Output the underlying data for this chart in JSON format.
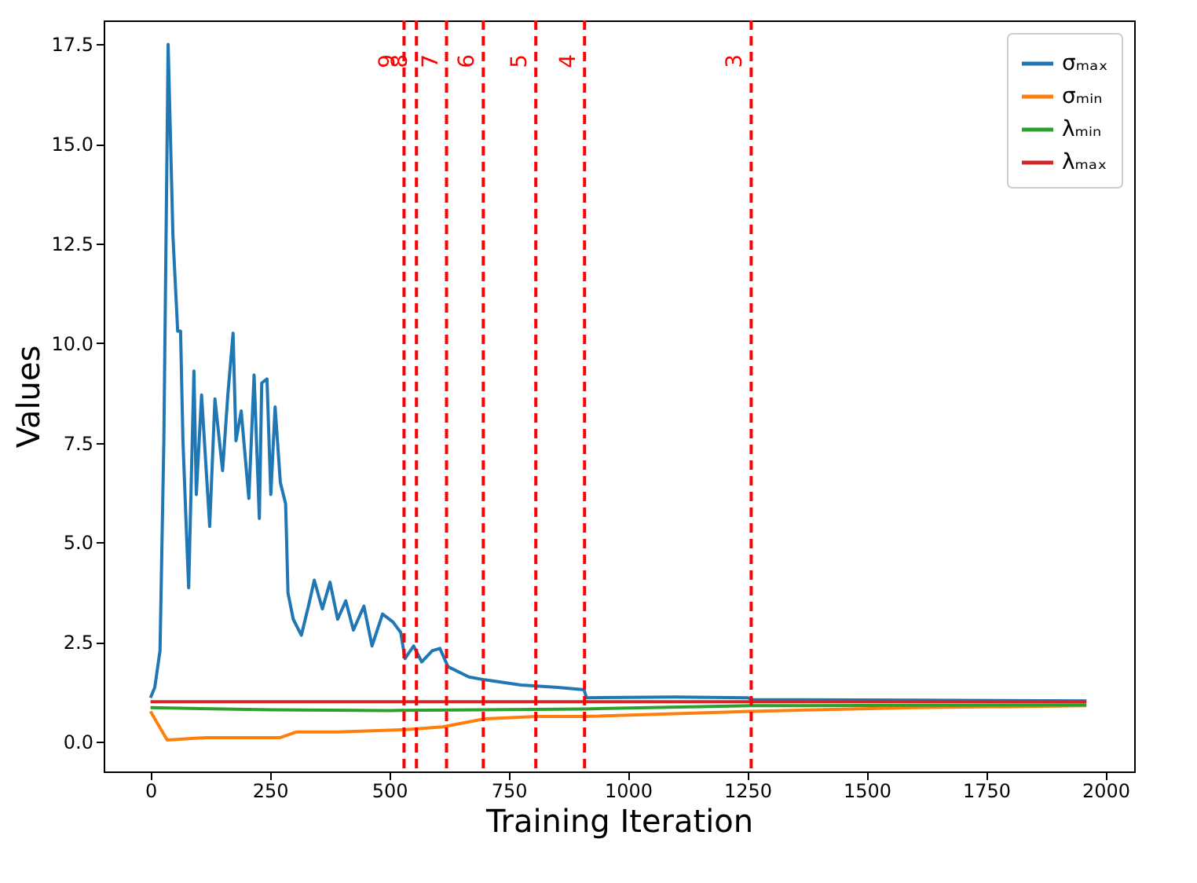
{
  "chart_data": {
    "type": "line",
    "xlabel": "Training Iteration",
    "ylabel": "Values",
    "xlim": [
      -98,
      2060
    ],
    "ylim": [
      -0.75,
      18.1
    ],
    "xticks": [
      0,
      250,
      500,
      750,
      1000,
      1250,
      1500,
      1750,
      2000
    ],
    "yticks": [
      {
        "value": 0,
        "label": "0.0"
      },
      {
        "value": 2.5,
        "label": "2.5"
      },
      {
        "value": 5,
        "label": "5.0"
      },
      {
        "value": 7.5,
        "label": "7.5"
      },
      {
        "value": 10,
        "label": "10.0"
      },
      {
        "value": 12.5,
        "label": "12.5"
      },
      {
        "value": 15,
        "label": "15.0"
      },
      {
        "value": 17.5,
        "label": "17.5"
      }
    ],
    "grid": false,
    "legend": "top right",
    "line_style": "solid",
    "marker": "none",
    "series": [
      {
        "name": "σₘₐₓ",
        "color": "#1f77b4",
        "x": [
          0,
          9,
          20,
          28,
          37,
          47,
          57,
          63,
          68,
          76,
          80,
          91,
          96,
          107,
          124,
          135,
          151,
          162,
          173,
          179,
          190,
          206,
          217,
          228,
          233,
          244,
          252,
          261,
          272,
          283,
          288,
          299,
          316,
          332,
          343,
          360,
          376,
          392,
          409,
          425,
          447,
          464,
          486,
          508,
          524,
          533,
          551,
          568,
          590,
          606,
          623,
          667,
          700,
          776,
          853,
          908,
          913,
          1100,
          1250,
          1262,
          1600,
          1960
        ],
        "values": [
          1.1,
          1.36,
          2.28,
          7.55,
          17.5,
          12.7,
          10.3,
          10.3,
          7.55,
          5.05,
          3.86,
          9.3,
          6.2,
          8.7,
          5.4,
          8.6,
          6.8,
          8.7,
          10.25,
          7.55,
          8.3,
          6.1,
          9.2,
          5.6,
          9.0,
          9.1,
          6.2,
          8.4,
          6.5,
          5.97,
          3.73,
          3.07,
          2.67,
          3.46,
          4.05,
          3.33,
          4.0,
          3.07,
          3.53,
          2.8,
          3.4,
          2.4,
          3.2,
          3.0,
          2.74,
          2.08,
          2.4,
          2.0,
          2.28,
          2.34,
          1.88,
          1.62,
          1.55,
          1.42,
          1.36,
          1.3,
          1.1,
          1.12,
          1.1,
          1.05,
          1.04,
          1.02
        ]
      },
      {
        "name": "σₘᵢₙ",
        "color": "#ff7f0e",
        "x": [
          0,
          35,
          118,
          272,
          305,
          392,
          535,
          612,
          700,
          809,
          908,
          1258,
          1600,
          1960
        ],
        "values": [
          0.76,
          0.04,
          0.1,
          0.1,
          0.24,
          0.24,
          0.3,
          0.37,
          0.57,
          0.63,
          0.63,
          0.76,
          0.85,
          0.9
        ]
      },
      {
        "name": "λₘᵢₙ",
        "color": "#2ca02c",
        "x": [
          0,
          250,
          500,
          700,
          908,
          1258,
          1960
        ],
        "values": [
          0.85,
          0.8,
          0.78,
          0.8,
          0.82,
          0.9,
          0.92
        ]
      },
      {
        "name": "λₘₐₓ",
        "color": "#d62728",
        "x": [
          0,
          1960
        ],
        "values": [
          1.0,
          1.0
        ]
      }
    ],
    "ref_lines": [
      {
        "axis": "x",
        "value": 531,
        "color": "#ff0000",
        "line_style": "dashed"
      },
      {
        "axis": "x",
        "value": 557,
        "color": "#ff0000",
        "line_style": "dashed"
      },
      {
        "axis": "x",
        "value": 620,
        "color": "#ff0000",
        "line_style": "dashed"
      },
      {
        "axis": "x",
        "value": 697,
        "color": "#ff0000",
        "line_style": "dashed"
      },
      {
        "axis": "x",
        "value": 807,
        "color": "#ff0000",
        "line_style": "dashed"
      },
      {
        "axis": "x",
        "value": 909,
        "color": "#ff0000",
        "line_style": "dashed"
      },
      {
        "axis": "x",
        "value": 1258,
        "color": "#ff0000",
        "line_style": "dashed"
      }
    ],
    "annotations": [
      {
        "text": "9",
        "x": 531,
        "y": 16.9
      },
      {
        "text": "8",
        "x": 557,
        "y": 16.9
      },
      {
        "text": "7",
        "x": 620,
        "y": 16.9
      },
      {
        "text": "6",
        "x": 697,
        "y": 16.9
      },
      {
        "text": "5",
        "x": 807,
        "y": 16.9
      },
      {
        "text": "4",
        "x": 909,
        "y": 16.9
      },
      {
        "text": "3",
        "x": 1258,
        "y": 16.9
      }
    ]
  }
}
